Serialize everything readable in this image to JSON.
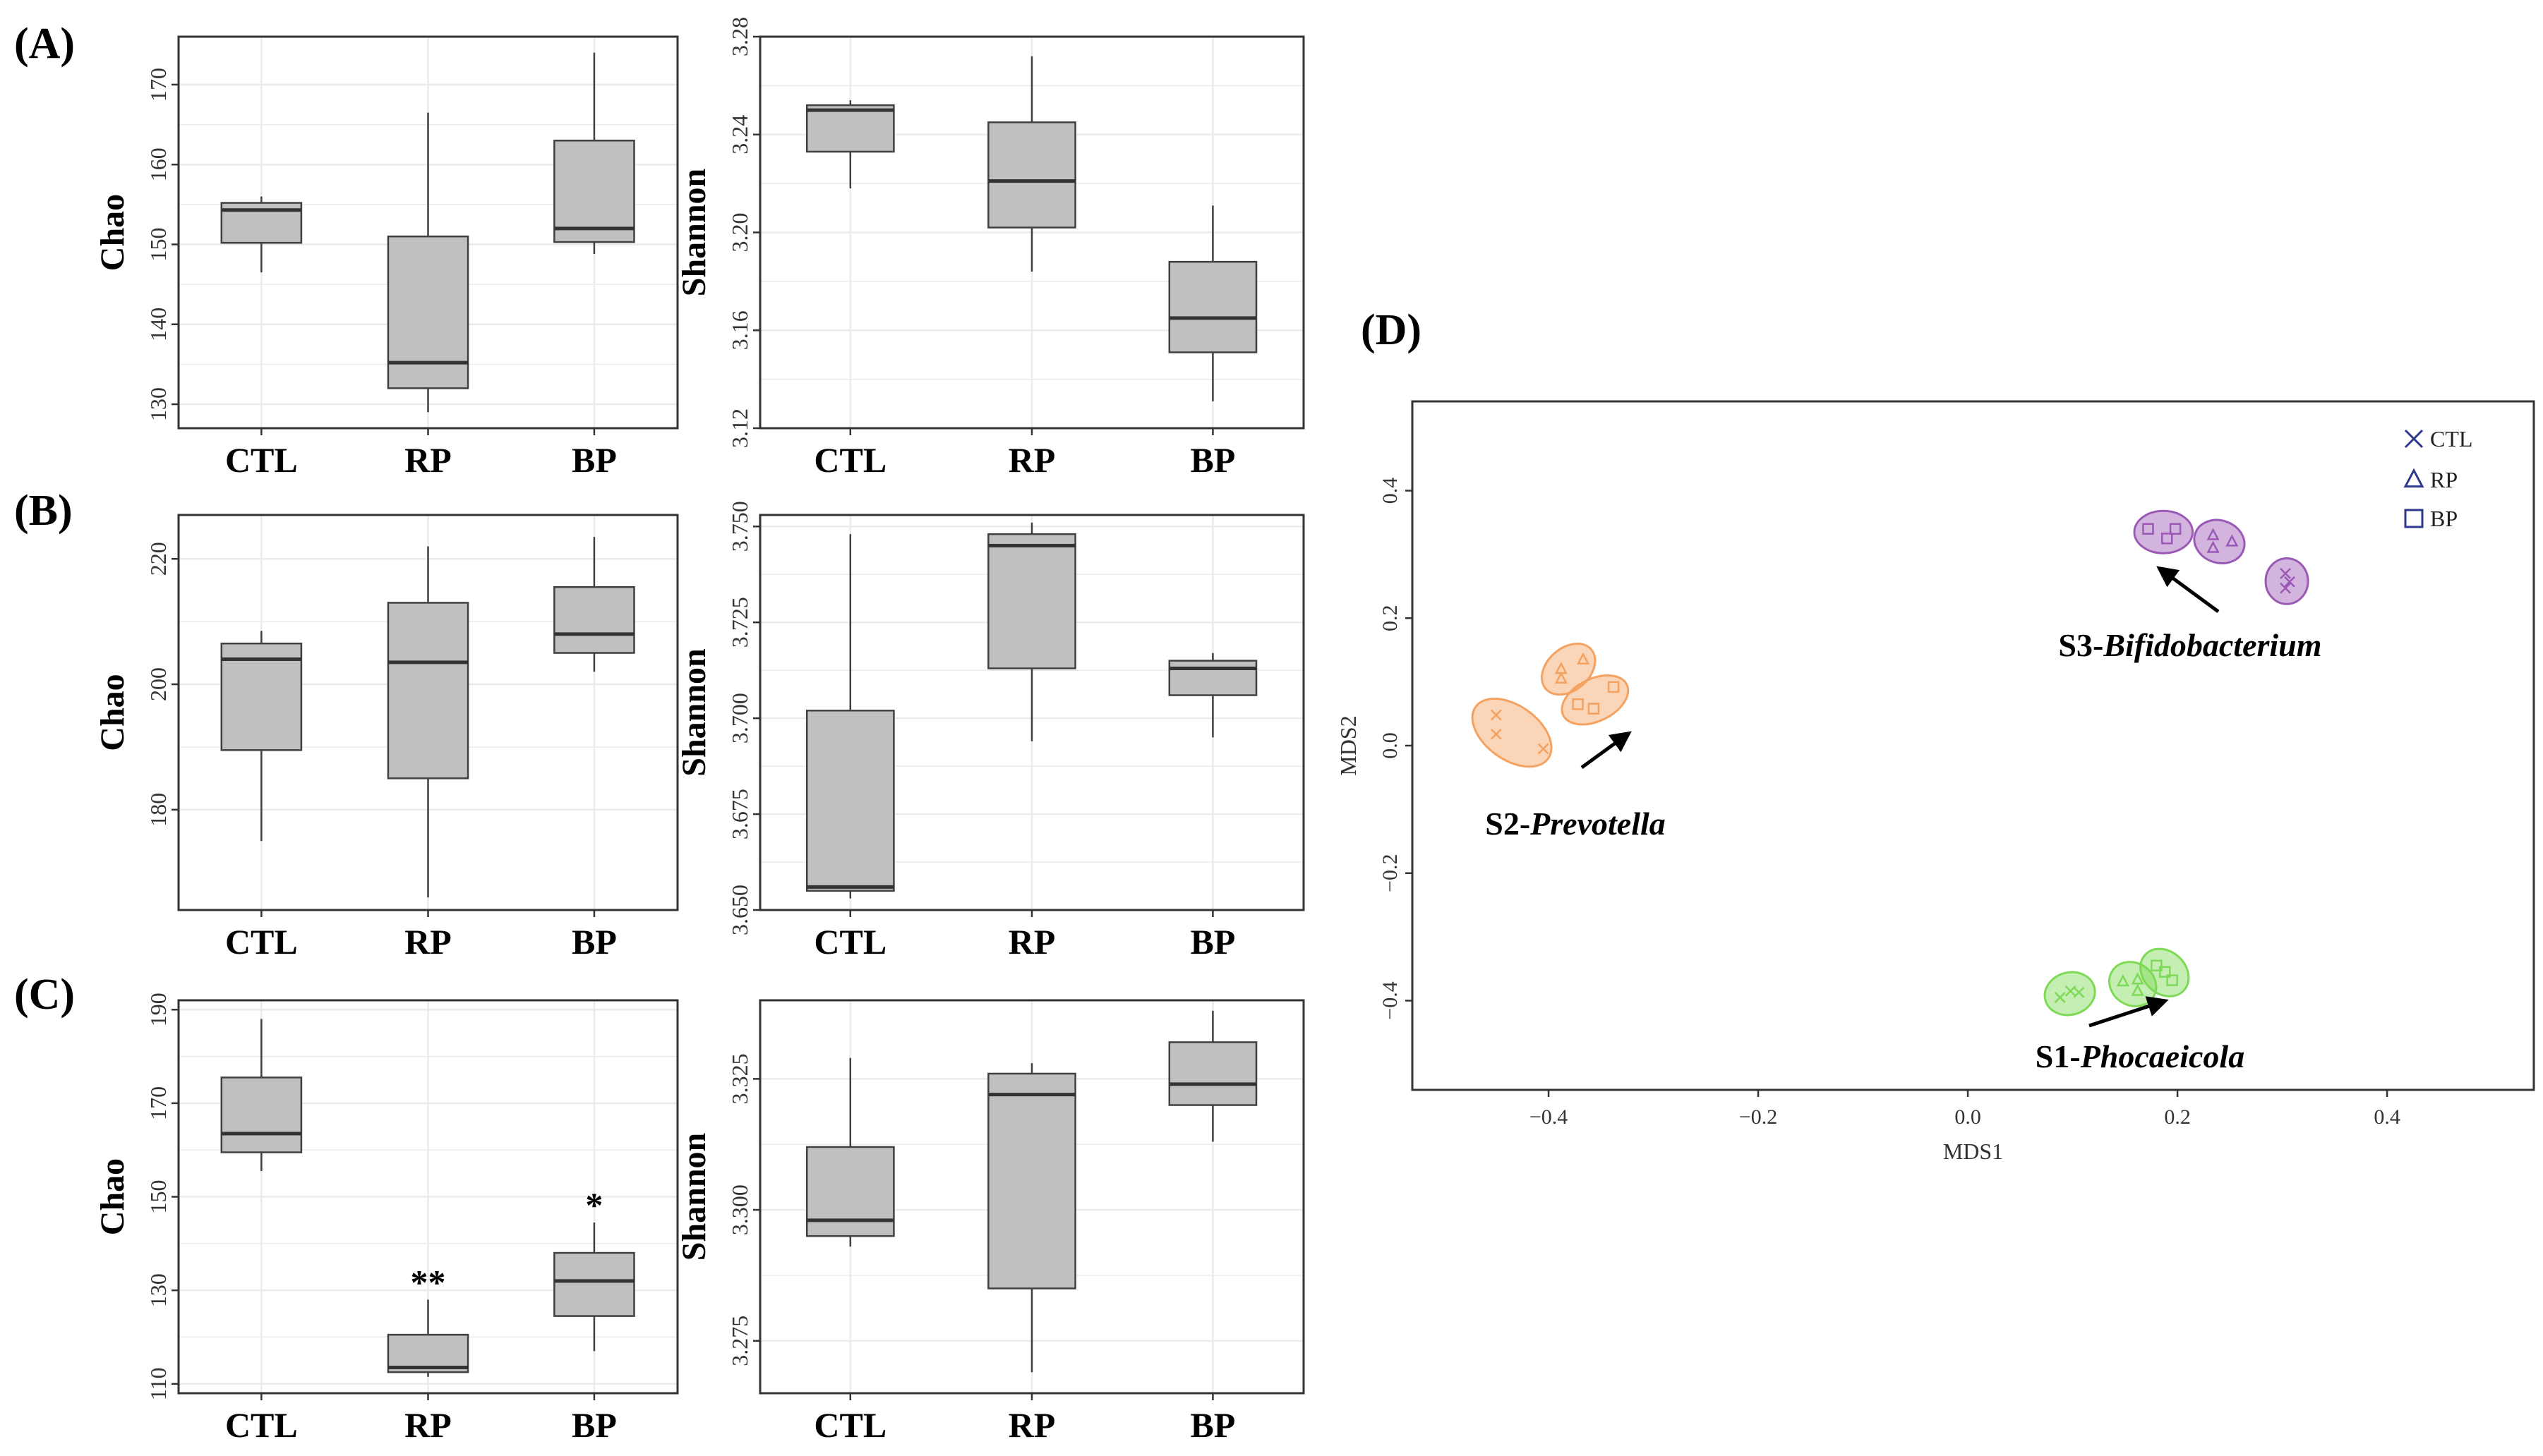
{
  "panel_labels": [
    "(A)",
    "(B)",
    "(C)",
    "(D)"
  ],
  "colors": {
    "box_fill": "#c0c0c0",
    "box_stroke": "#404040",
    "grid": "#ebebeb",
    "frame": "#333333",
    "S1": "#7ed957",
    "S2": "#f4a261",
    "S3": "#9b59b6",
    "legend_marker": "#2d3a8c"
  },
  "chart_data": [
    {
      "type": "box",
      "panel": "(A)",
      "ylabel": "Chao",
      "categories": [
        "CTL",
        "RP",
        "BP"
      ],
      "ylim": [
        127,
        176
      ],
      "yticks": [
        130,
        140,
        150,
        160,
        170
      ],
      "boxes": [
        {
          "min": 146.5,
          "q1": 150.2,
          "median": 154.3,
          "q3": 155.2,
          "max": 156.0
        },
        {
          "min": 129.0,
          "q1": 132.0,
          "median": 135.2,
          "q3": 151.0,
          "max": 166.5
        },
        {
          "min": 148.8,
          "q1": 150.3,
          "median": 152.0,
          "q3": 163.0,
          "max": 174.0
        }
      ],
      "annotations": [
        "",
        "",
        ""
      ]
    },
    {
      "type": "box",
      "panel": "(A)",
      "ylabel": "Shannon",
      "categories": [
        "CTL",
        "RP",
        "BP"
      ],
      "ylim": [
        3.12,
        3.28
      ],
      "yticks": [
        3.12,
        3.16,
        3.2,
        3.24,
        3.28
      ],
      "tick_labels": [
        "3.12",
        "3.16",
        "3.20",
        "3.24",
        "3.28"
      ],
      "boxes": [
        {
          "min": 3.218,
          "q1": 3.233,
          "median": 3.25,
          "q3": 3.252,
          "max": 3.254
        },
        {
          "min": 3.184,
          "q1": 3.202,
          "median": 3.221,
          "q3": 3.245,
          "max": 3.272
        },
        {
          "min": 3.131,
          "q1": 3.151,
          "median": 3.165,
          "q3": 3.188,
          "max": 3.211
        }
      ],
      "annotations": [
        "",
        "",
        ""
      ]
    },
    {
      "type": "box",
      "panel": "(B)",
      "ylabel": "Chao",
      "categories": [
        "CTL",
        "RP",
        "BP"
      ],
      "ylim": [
        164,
        227
      ],
      "yticks": [
        180,
        200,
        220
      ],
      "boxes": [
        {
          "min": 175.0,
          "q1": 189.5,
          "median": 204.0,
          "q3": 206.5,
          "max": 208.5
        },
        {
          "min": 166.0,
          "q1": 185.0,
          "median": 203.5,
          "q3": 213.0,
          "max": 222.0
        },
        {
          "min": 202.0,
          "q1": 205.0,
          "median": 208.0,
          "q3": 215.5,
          "max": 223.5
        }
      ],
      "annotations": [
        "",
        "",
        ""
      ]
    },
    {
      "type": "box",
      "panel": "(B)",
      "ylabel": "Shannon",
      "categories": [
        "CTL",
        "RP",
        "BP"
      ],
      "ylim": [
        3.65,
        3.753
      ],
      "yticks": [
        3.65,
        3.675,
        3.7,
        3.725,
        3.75
      ],
      "tick_labels": [
        "3.650",
        "3.675",
        "3.700",
        "3.725",
        "3.750"
      ],
      "boxes": [
        {
          "min": 3.653,
          "q1": 3.655,
          "median": 3.656,
          "q3": 3.702,
          "max": 3.748
        },
        {
          "min": 3.694,
          "q1": 3.713,
          "median": 3.745,
          "q3": 3.748,
          "max": 3.751
        },
        {
          "min": 3.695,
          "q1": 3.706,
          "median": 3.713,
          "q3": 3.715,
          "max": 3.717
        }
      ],
      "annotations": [
        "",
        "",
        ""
      ]
    },
    {
      "type": "box",
      "panel": "(C)",
      "ylabel": "Chao",
      "categories": [
        "CTL",
        "RP",
        "BP"
      ],
      "ylim": [
        108,
        192
      ],
      "yticks": [
        110,
        130,
        150,
        170,
        190
      ],
      "boxes": [
        {
          "min": 155.5,
          "q1": 159.5,
          "median": 163.5,
          "q3": 175.5,
          "max": 188.0
        },
        {
          "min": 111.5,
          "q1": 112.5,
          "median": 113.5,
          "q3": 120.5,
          "max": 128.0
        },
        {
          "min": 117.0,
          "q1": 124.5,
          "median": 132.0,
          "q3": 138.0,
          "max": 144.5
        }
      ],
      "annotations": [
        "",
        "**",
        "*"
      ]
    },
    {
      "type": "box",
      "panel": "(C)",
      "ylabel": "Shannon",
      "categories": [
        "CTL",
        "RP",
        "BP"
      ],
      "ylim": [
        3.265,
        3.34
      ],
      "yticks": [
        3.275,
        3.3,
        3.325
      ],
      "tick_labels": [
        "3.275",
        "3.300",
        "3.325"
      ],
      "boxes": [
        {
          "min": 3.293,
          "q1": 3.295,
          "median": 3.298,
          "q3": 3.312,
          "max": 3.329
        },
        {
          "min": 3.269,
          "q1": 3.285,
          "median": 3.322,
          "q3": 3.326,
          "max": 3.328
        },
        {
          "min": 3.313,
          "q1": 3.32,
          "median": 3.324,
          "q3": 3.332,
          "max": 3.338
        }
      ],
      "annotations": [
        "",
        "",
        ""
      ]
    },
    {
      "type": "scatter",
      "panel": "(D)",
      "xlabel": "MDS1",
      "ylabel": "MDS2",
      "xlim": [
        -0.53,
        0.54
      ],
      "ylim": [
        -0.54,
        0.54
      ],
      "xticks": [
        -0.4,
        -0.2,
        0.0,
        0.2,
        0.4
      ],
      "xtick_labels": [
        "−0.4",
        "−0.2",
        "0.0",
        "0.2",
        "0.4"
      ],
      "yticks": [
        -0.4,
        -0.2,
        0.0,
        0.2,
        0.4
      ],
      "ytick_labels": [
        "−0.4",
        "−0.2",
        "0.0",
        "0.2",
        "0.4"
      ],
      "legend": [
        {
          "marker": "x",
          "label": "CTL"
        },
        {
          "marker": "triangle",
          "label": "RP"
        },
        {
          "marker": "square",
          "label": "BP"
        }
      ],
      "legend_position": "top-right",
      "clusters": [
        {
          "id": "S3",
          "label_prefix": "S3-",
          "label_genus": "Bifidobacterium",
          "groups": [
            {
              "shape": "square",
              "points": [
                [
                  0.172,
                  0.34
                ],
                [
                  0.19,
                  0.325
                ],
                [
                  0.198,
                  0.34
                ]
              ]
            },
            {
              "shape": "triangle",
              "points": [
                [
                  0.234,
                  0.33
                ],
                [
                  0.234,
                  0.31
                ],
                [
                  0.252,
                  0.32
                ]
              ]
            },
            {
              "shape": "x",
              "points": [
                [
                  0.303,
                  0.27
                ],
                [
                  0.307,
                  0.257
                ],
                [
                  0.303,
                  0.247
                ]
              ]
            }
          ]
        },
        {
          "id": "S2",
          "label_prefix": "S2-",
          "label_genus": "Prevotella",
          "groups": [
            {
              "shape": "x",
              "points": [
                [
                  -0.45,
                  0.048
                ],
                [
                  -0.45,
                  0.018
                ],
                [
                  -0.405,
                  -0.005
                ]
              ]
            },
            {
              "shape": "triangle",
              "points": [
                [
                  -0.388,
                  0.12
                ],
                [
                  -0.388,
                  0.105
                ],
                [
                  -0.367,
                  0.135
                ]
              ]
            },
            {
              "shape": "square",
              "points": [
                [
                  -0.372,
                  0.065
                ],
                [
                  -0.357,
                  0.058
                ],
                [
                  -0.338,
                  0.092
                ]
              ]
            }
          ]
        },
        {
          "id": "S1",
          "label_prefix": "S1-",
          "label_genus": "Phocaeicola",
          "groups": [
            {
              "shape": "x",
              "points": [
                [
                  0.088,
                  -0.395
                ],
                [
                  0.098,
                  -0.385
                ],
                [
                  0.106,
                  -0.387
                ]
              ]
            },
            {
              "shape": "triangle",
              "points": [
                [
                  0.148,
                  -0.37
                ],
                [
                  0.162,
                  -0.367
                ],
                [
                  0.162,
                  -0.385
                ]
              ]
            },
            {
              "shape": "square",
              "points": [
                [
                  0.18,
                  -0.345
                ],
                [
                  0.188,
                  -0.355
                ],
                [
                  0.195,
                  -0.368
                ]
              ]
            }
          ]
        }
      ]
    }
  ]
}
